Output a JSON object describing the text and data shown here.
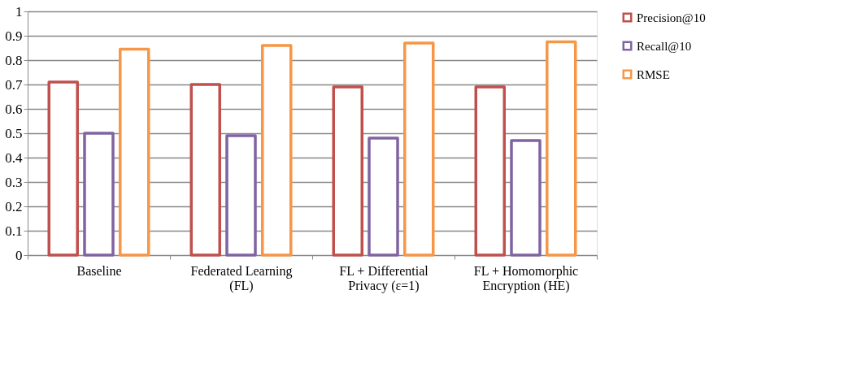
{
  "chart_data": {
    "type": "bar",
    "categories": [
      "Baseline",
      "Federated Learning (FL)",
      "FL + Differential Privacy (ε=1)",
      "FL + Homomorphic Encryption (HE)"
    ],
    "series": [
      {
        "name": "Precision@10",
        "color": "#c0504d",
        "values": [
          0.71,
          0.7,
          0.69,
          0.69
        ]
      },
      {
        "name": "Recall@10",
        "color": "#8064a2",
        "values": [
          0.5,
          0.49,
          0.48,
          0.47
        ]
      },
      {
        "name": "RMSE",
        "color": "#f79646",
        "values": [
          0.845,
          0.86,
          0.87,
          0.875
        ]
      }
    ],
    "ylim": [
      0,
      1
    ],
    "yticks": [
      0,
      0.1,
      0.2,
      0.3,
      0.4,
      0.5,
      0.6,
      0.7,
      0.8,
      0.9,
      1
    ],
    "grid": "y",
    "legend": "right"
  }
}
